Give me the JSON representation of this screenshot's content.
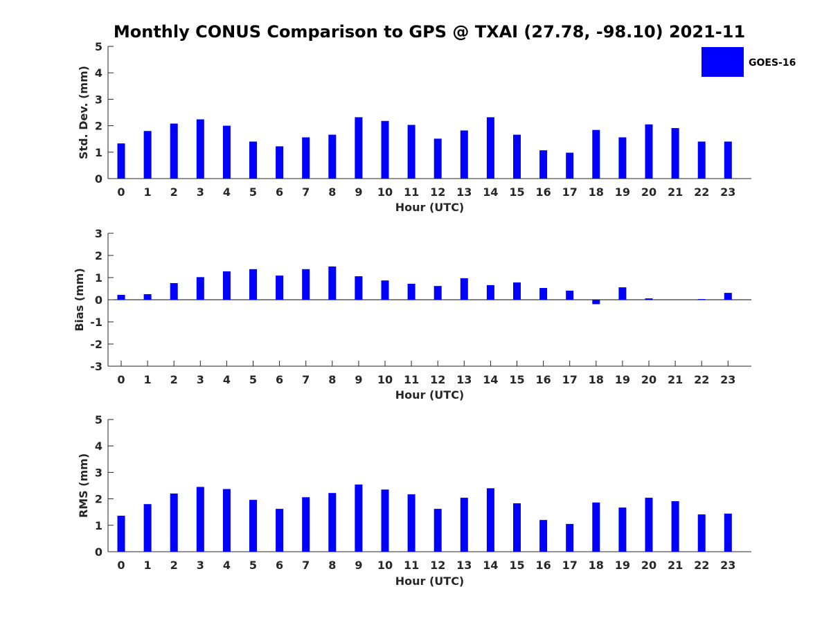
{
  "title": "Monthly CONUS Comparison to GPS @ TXAI (27.78, -98.10) 2021-11",
  "legend": {
    "label": "GOES-16",
    "color": "#0000ff"
  },
  "chart_data": [
    {
      "type": "bar",
      "name": "std",
      "xlabel": "Hour (UTC)",
      "ylabel": "Std. Dev. (mm)",
      "ylim": [
        0,
        5
      ],
      "yticks": [
        "0",
        "1",
        "2",
        "3",
        "4",
        "5"
      ],
      "categories": [
        "0",
        "1",
        "2",
        "3",
        "4",
        "5",
        "6",
        "7",
        "8",
        "9",
        "10",
        "11",
        "12",
        "13",
        "14",
        "15",
        "16",
        "17",
        "18",
        "19",
        "20",
        "21",
        "22",
        "23"
      ],
      "series": [
        {
          "name": "GOES-16",
          "values": [
            1.33,
            1.8,
            2.08,
            2.24,
            2.0,
            1.4,
            1.22,
            1.56,
            1.66,
            2.32,
            2.18,
            2.03,
            1.51,
            1.82,
            2.32,
            1.66,
            1.07,
            0.98,
            1.84,
            1.56,
            2.05,
            1.91,
            1.4,
            1.4
          ]
        }
      ]
    },
    {
      "type": "bar",
      "name": "bias",
      "xlabel": "Hour (UTC)",
      "ylabel": "Bias (mm)",
      "ylim": [
        -3,
        3
      ],
      "yticks": [
        "-3",
        "-2",
        "-1",
        "0",
        "1",
        "2",
        "3"
      ],
      "categories": [
        "0",
        "1",
        "2",
        "3",
        "4",
        "5",
        "6",
        "7",
        "8",
        "9",
        "10",
        "11",
        "12",
        "13",
        "14",
        "15",
        "16",
        "17",
        "18",
        "19",
        "20",
        "21",
        "22",
        "23"
      ],
      "series": [
        {
          "name": "GOES-16",
          "values": [
            0.22,
            0.25,
            0.75,
            1.02,
            1.28,
            1.38,
            1.09,
            1.38,
            1.5,
            1.06,
            0.87,
            0.72,
            0.62,
            0.97,
            0.66,
            0.78,
            0.53,
            0.41,
            -0.2,
            0.56,
            0.06,
            0.0,
            0.03,
            0.31
          ]
        }
      ]
    },
    {
      "type": "bar",
      "name": "rms",
      "xlabel": "Hour (UTC)",
      "ylabel": "RMS (mm)",
      "ylim": [
        0,
        5
      ],
      "yticks": [
        "0",
        "1",
        "2",
        "3",
        "4",
        "5"
      ],
      "categories": [
        "0",
        "1",
        "2",
        "3",
        "4",
        "5",
        "6",
        "7",
        "8",
        "9",
        "10",
        "11",
        "12",
        "13",
        "14",
        "15",
        "16",
        "17",
        "18",
        "19",
        "20",
        "21",
        "22",
        "23"
      ],
      "series": [
        {
          "name": "GOES-16",
          "values": [
            1.36,
            1.8,
            2.2,
            2.45,
            2.37,
            1.96,
            1.62,
            2.06,
            2.22,
            2.54,
            2.35,
            2.17,
            1.62,
            2.04,
            2.4,
            1.83,
            1.2,
            1.05,
            1.86,
            1.67,
            2.04,
            1.91,
            1.41,
            1.44
          ]
        }
      ]
    }
  ]
}
